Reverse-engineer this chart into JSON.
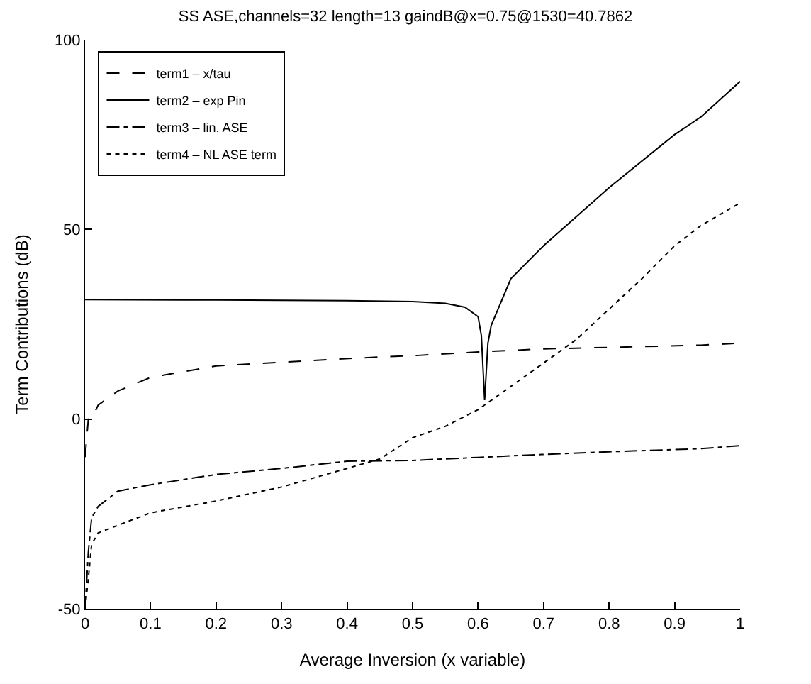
{
  "chart_data": {
    "type": "line",
    "title": "SS ASE,channels=32 length=13 gaindB@x=0.75@1530=40.7862",
    "xlabel": "Average Inversion (x variable)",
    "ylabel": "Term Contributions (dB)",
    "xlim": [
      0,
      1
    ],
    "ylim": [
      -50,
      100
    ],
    "xticks": [
      0,
      0.1,
      0.2,
      0.3,
      0.4,
      0.5,
      0.6,
      0.7,
      0.8,
      0.9,
      1
    ],
    "yticks": [
      -50,
      0,
      50,
      100
    ],
    "legend": "top left",
    "marker": "none",
    "series": [
      {
        "name": "term1 – x/tau",
        "color": "#000000",
        "line_style": "dashed",
        "x": [
          0,
          0.005,
          0.01,
          0.02,
          0.05,
          0.1,
          0.2,
          0.3,
          0.45,
          0.5,
          0.6,
          0.7,
          0.8,
          0.94,
          1.0
        ],
        "values": [
          -10,
          0,
          0,
          3.7,
          7.4,
          11,
          14,
          15,
          16.4,
          16.7,
          17.7,
          18.5,
          18.9,
          19.5,
          20
        ]
      },
      {
        "name": "term2 – exp Pin",
        "color": "#000000",
        "line_style": "solid",
        "x": [
          0,
          0.2,
          0.4,
          0.5,
          0.55,
          0.58,
          0.6,
          0.605,
          0.61,
          0.615,
          0.62,
          0.65,
          0.7,
          0.8,
          0.9,
          0.94,
          1.0
        ],
        "values": [
          31.5,
          31.4,
          31.2,
          31,
          30.5,
          29.5,
          27,
          22,
          5,
          20,
          24.7,
          37,
          45.7,
          61,
          75,
          79.6,
          89
        ]
      },
      {
        "name": "term3 – lin. ASE",
        "color": "#000000",
        "line_style": "dashdot",
        "x": [
          0,
          0.005,
          0.01,
          0.02,
          0.05,
          0.1,
          0.2,
          0.3,
          0.4,
          0.5,
          0.6,
          0.7,
          0.8,
          0.94,
          1.0
        ],
        "values": [
          -50,
          -35,
          -26,
          -23,
          -19,
          -17.3,
          -14.6,
          -13,
          -11.1,
          -10.9,
          -10.1,
          -9.3,
          -8.6,
          -7.8,
          -7
        ]
      },
      {
        "name": "term4 – NL ASE term",
        "color": "#000000",
        "line_style": "dotted",
        "x": [
          0,
          0.005,
          0.01,
          0.02,
          0.05,
          0.1,
          0.2,
          0.3,
          0.4,
          0.45,
          0.5,
          0.55,
          0.6,
          0.65,
          0.7,
          0.75,
          0.8,
          0.85,
          0.9,
          0.94,
          1.0
        ],
        "values": [
          -50,
          -42,
          -33,
          -30,
          -28,
          -24.7,
          -21.6,
          -17.9,
          -13,
          -10.5,
          -4.9,
          -1.9,
          2.5,
          8.6,
          14.8,
          21,
          29,
          37,
          45.7,
          51,
          57
        ]
      }
    ]
  }
}
